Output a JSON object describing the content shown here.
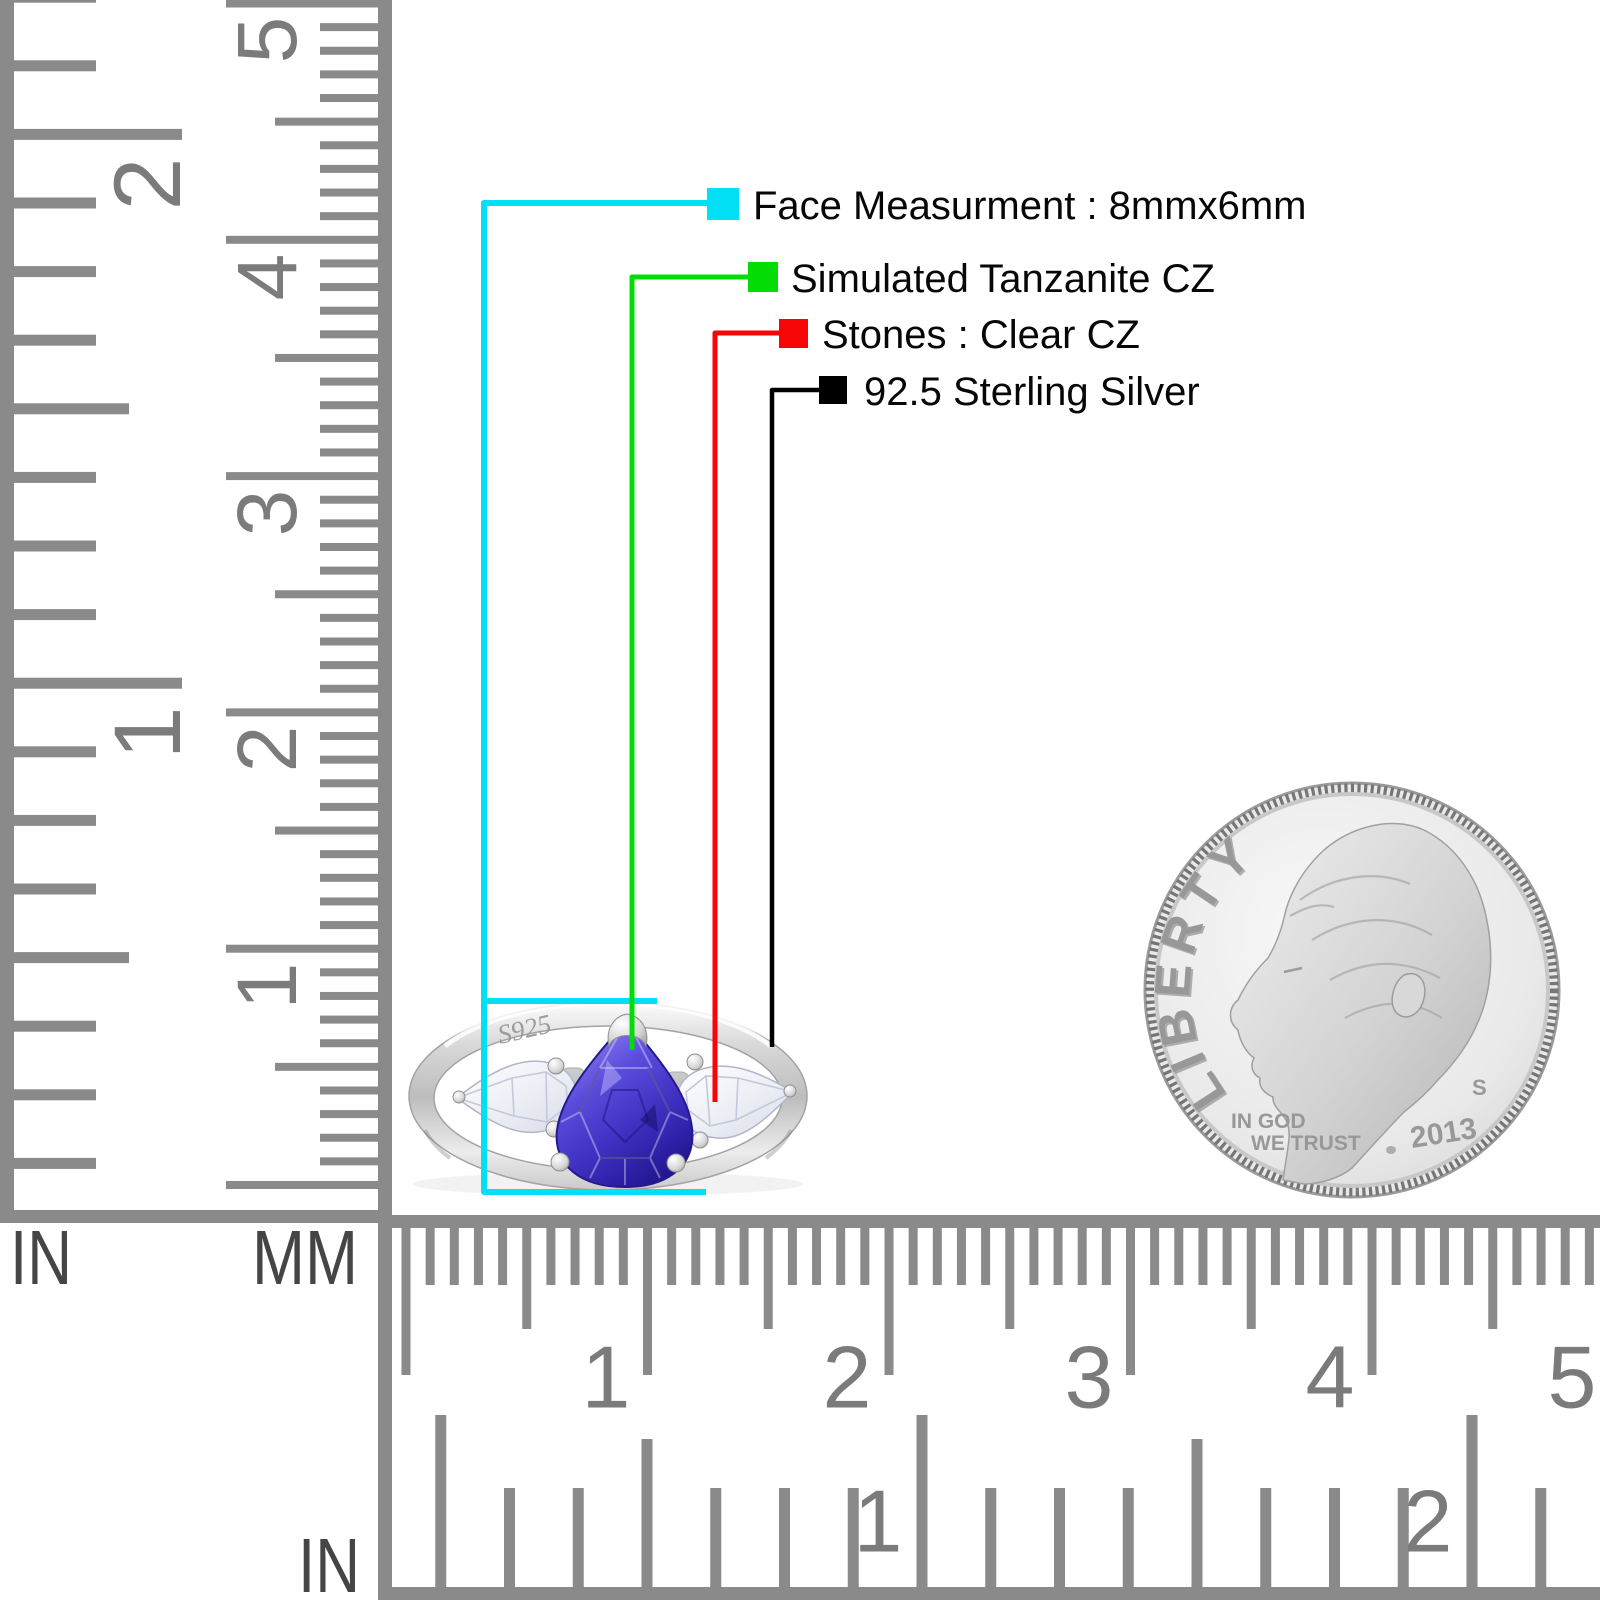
{
  "annotations": {
    "items": [
      {
        "name": "face-measurement",
        "label": "Face Measurment : 8mmx6mm",
        "color": "#00dff3"
      },
      {
        "name": "center-stone",
        "label": "Simulated Tanzanite CZ",
        "color": "#04dd04"
      },
      {
        "name": "side-stones",
        "label": "Stones : Clear CZ",
        "color": "#f60606"
      },
      {
        "name": "metal",
        "label": "92.5 Sterling Silver",
        "color": "#000000"
      }
    ]
  },
  "rulers": {
    "left_inch": {
      "unit": "IN",
      "numbers": [
        "1",
        "2"
      ]
    },
    "left_mm": {
      "unit": "MM",
      "numbers": [
        "1",
        "2",
        "3",
        "4",
        "5"
      ]
    },
    "bottom_mm": {
      "numbers": [
        "1",
        "2",
        "3",
        "4",
        "5"
      ]
    },
    "bottom_inch": {
      "unit": "IN",
      "numbers": [
        "1",
        "2"
      ]
    }
  },
  "ring": {
    "engraving": "S925"
  },
  "coin": {
    "legend": "LIBERTY",
    "motto_line1": "IN GOD",
    "motto_line2": "WE TRUST",
    "mint_mark": "S",
    "year": "2013"
  }
}
